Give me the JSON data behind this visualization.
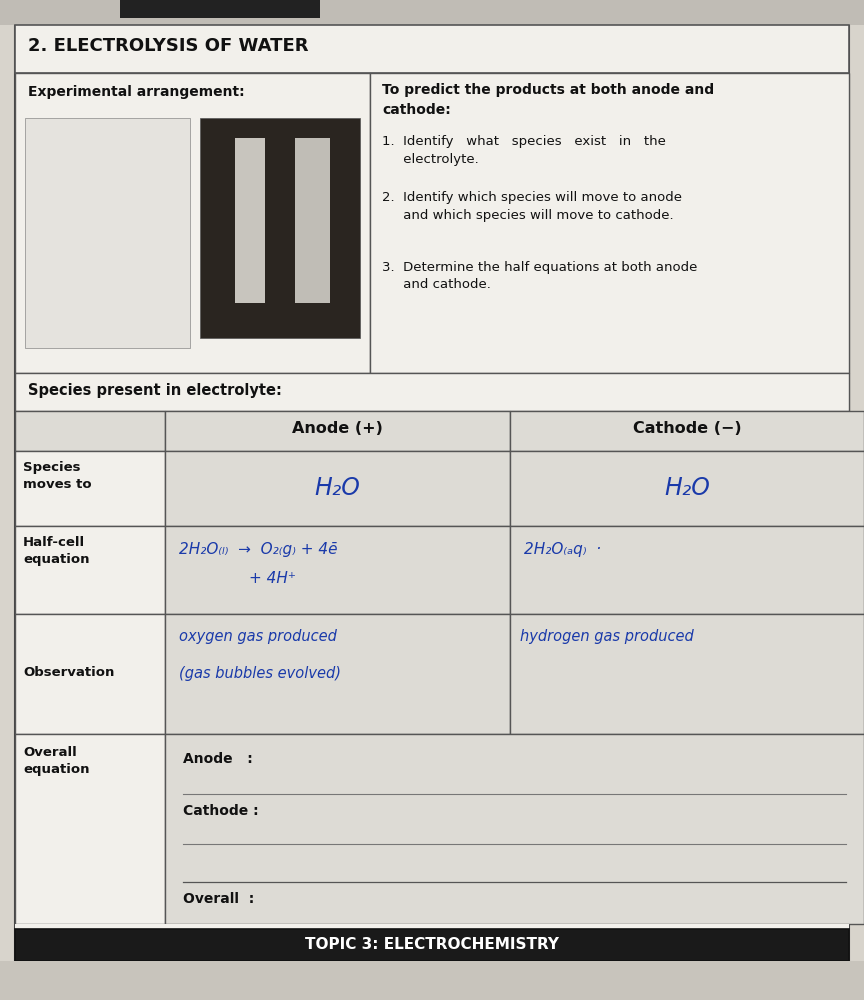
{
  "title": "2. ELECTROLYSIS OF WATER",
  "background_color": "#d8d4cc",
  "paper_color": "#f2f0eb",
  "cell_shaded": "#dddbd5",
  "cell_white": "#f2f0eb",
  "border_color": "#555555",
  "text_color": "#111111",
  "handwriting_color": "#1a3aaa",
  "footer_bg": "#1a1a1a",
  "footer_text": "TOPIC 3: ELECTROCHEMISTRY",
  "footer_text_color": "#ffffff",
  "exp_label": "Experimental arrangement:",
  "right_bold": "To predict the products at both anode and\ncathode:",
  "point1": "1.  Identify   what   species   exist   in   the\n     electrolyte.",
  "point2": "2.  Identify which species will move to anode\n     and which species will move to cathode.",
  "point3": "3.  Determine the half equations at both anode\n     and cathode.",
  "species_row_label": "Species present in electrolyte:",
  "anode_header": "Anode (+)",
  "cathode_header": "Cathode (−)",
  "row0_label": "Species\nmoves to",
  "row1_label": "Half-cell\nequation",
  "row2_label": "Observation",
  "row3_label": "Overall\nequation",
  "anode_species": "H₂O",
  "cathode_species": "H₂O",
  "anode_hc1": "2H₂O₍ₗ₎  →  O₂₍ₗ₎ + 4ē",
  "anode_hc2": "+ 4H⁺",
  "cathode_hc": "2H₂O₍ₗ₎  ·",
  "anode_obs1": "oxygen gas produced",
  "anode_obs2": "(gas bubbles evolved)",
  "cathode_obs": "hydrogen gas produced",
  "overall_anode": "Anode   :",
  "overall_cathode": "Cathode :",
  "overall_overall": "Overall  :"
}
